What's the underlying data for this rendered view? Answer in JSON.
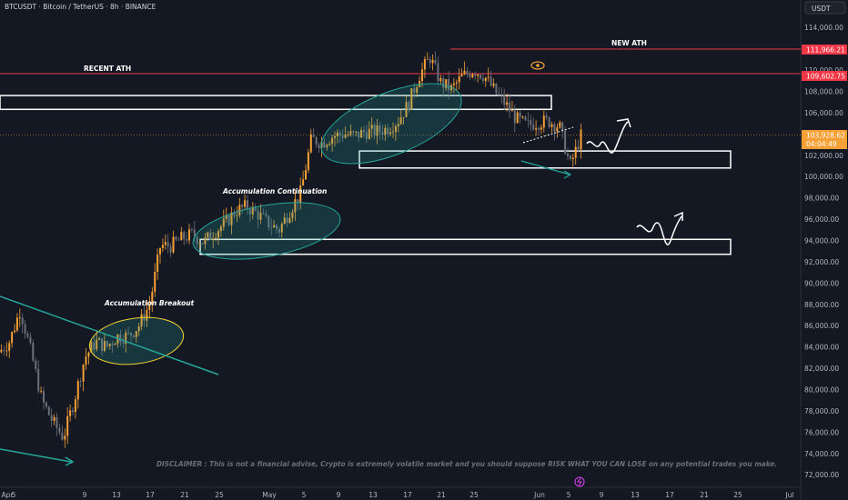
{
  "header": {
    "symbol_title": "BTCUSDT · Bitcoin / TetherUS · 8h · BINANCE",
    "currency_button": "USDT"
  },
  "annotations": {
    "new_ath": "NEW ATH",
    "recent_ath": "RECENT ATH",
    "accumulation_continuation": "Accumulation Continuation",
    "accumulation_breakout": "Accumulation Breakout",
    "disclaimer": "DISCLAIMER : This is not a financial advise, Crypto is extremely volatile market and you should suppose RISK WHAT YOU CAN LOSE on any potential trades you make."
  },
  "price_labels": {
    "new_ath": "111,966.21",
    "recent_ath": "109,602.75",
    "last_price": "103,928.62",
    "countdown": "04:04:49"
  },
  "colors": {
    "background": "#141823",
    "bull": "#f7a035",
    "bear": "#6d7079",
    "ath_line": "#f23645",
    "teal": "#26a69a",
    "yellow": "#f5d22f"
  },
  "chart_data": {
    "type": "candlestick",
    "title": "BTCUSDT · Bitcoin / TetherUS · 8h · BINANCE",
    "timeframe": "8h",
    "x_tick_labels": [
      "Apr",
      "5",
      "9",
      "13",
      "17",
      "21",
      "25",
      "May",
      "5",
      "9",
      "13",
      "17",
      "21",
      "25",
      "Jun",
      "5",
      "9",
      "13",
      "17",
      "21",
      "25",
      "Jul"
    ],
    "y_tick_labels": [
      "114,000.00",
      "112,000.00",
      "110,000.00",
      "108,000.00",
      "106,000.00",
      "104,000.00",
      "102,000.00",
      "100,000.00",
      "98,000.00",
      "96,000.00",
      "94,000.00",
      "92,000.00",
      "90,000.00",
      "88,000.00",
      "86,000.00",
      "84,000.00",
      "82,000.00",
      "80,000.00",
      "78,000.00",
      "76,000.00",
      "74,000.00",
      "72,000.00"
    ],
    "ylim": [
      71000,
      115000
    ],
    "price_path_points": [
      [
        0,
        83500
      ],
      [
        1,
        84500
      ],
      [
        2,
        87500
      ],
      [
        3,
        83500
      ],
      [
        4,
        79000
      ],
      [
        5,
        77000
      ],
      [
        6,
        75500
      ],
      [
        7,
        79000
      ],
      [
        8,
        83000
      ],
      [
        9,
        84500
      ],
      [
        10,
        84000
      ],
      [
        11,
        85000
      ],
      [
        12,
        85000
      ],
      [
        13,
        86000
      ],
      [
        14,
        88000
      ],
      [
        15,
        93500
      ],
      [
        16,
        93500
      ],
      [
        17,
        94200
      ],
      [
        18,
        94600
      ],
      [
        19,
        93800
      ],
      [
        20,
        94800
      ],
      [
        21,
        95600
      ],
      [
        22,
        96800
      ],
      [
        23,
        97200
      ],
      [
        24,
        96500
      ],
      [
        25,
        95600
      ],
      [
        26,
        95000
      ],
      [
        27,
        96800
      ],
      [
        28,
        98500
      ],
      [
        29,
        103500
      ],
      [
        30,
        103200
      ],
      [
        31,
        103800
      ],
      [
        32,
        104000
      ],
      [
        33,
        103800
      ],
      [
        34,
        104200
      ],
      [
        35,
        104200
      ],
      [
        36,
        104500
      ],
      [
        37,
        105200
      ],
      [
        38,
        106800
      ],
      [
        39,
        109500
      ],
      [
        40,
        111200
      ],
      [
        41,
        108800
      ],
      [
        42,
        108200
      ],
      [
        43,
        109400
      ],
      [
        44,
        110000
      ],
      [
        45,
        109500
      ],
      [
        46,
        108000
      ],
      [
        47,
        106800
      ],
      [
        48,
        105400
      ],
      [
        49,
        104800
      ],
      [
        50,
        105100
      ],
      [
        51,
        105200
      ],
      [
        52,
        104700
      ],
      [
        53,
        101000
      ],
      [
        54,
        103800
      ]
    ],
    "horizontal_levels": [
      {
        "label": "NEW ATH",
        "value": 111966.21
      },
      {
        "label": "RECENT ATH",
        "value": 109602.75
      }
    ],
    "supply_demand_zones": [
      {
        "low": 106300,
        "high": 107600
      },
      {
        "low": 100800,
        "high": 102400
      },
      {
        "low": 92700,
        "high": 94100
      }
    ],
    "annotations": [
      "NEW ATH",
      "RECENT ATH",
      "Accumulation Continuation",
      "Accumulation Breakout"
    ],
    "grid": false
  }
}
